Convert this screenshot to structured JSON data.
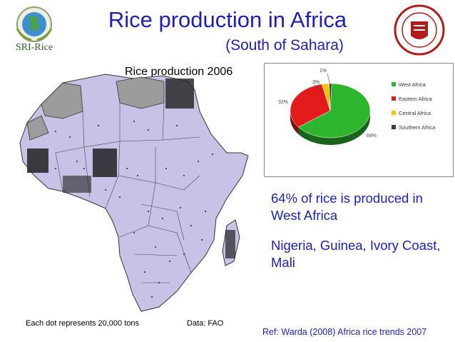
{
  "header": {
    "title": "Rice production in Africa",
    "subtitle": "(South of Sahara)",
    "logo_left_text": "SRI-Rice"
  },
  "map": {
    "caption": "Rice production 2006"
  },
  "chart_data": {
    "type": "pie",
    "categories": [
      "West Africa",
      "Eastern Africa",
      "Central Africa",
      "Southern Africa"
    ],
    "values": [
      64,
      32,
      3,
      1
    ],
    "labels": [
      "64%",
      "32%",
      "3%",
      "1%"
    ],
    "colors": [
      "#2db52d",
      "#e31b1b",
      "#f5c400",
      "#3a3a3a"
    ],
    "legend_position": "right",
    "three_d": true
  },
  "notes": {
    "share": "64% of rice is produced in West Africa",
    "countries": "Nigeria, Guinea, Ivory Coast, Mali"
  },
  "footer": {
    "dots": "Each dot represents 20,000 tons",
    "data": "Data: FAO",
    "ref": "Ref: Warda (2008) Africa rice trends 2007"
  }
}
